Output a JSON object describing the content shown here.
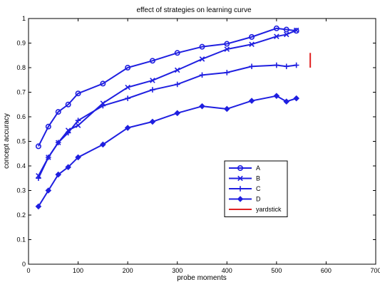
{
  "chart_data": {
    "type": "line",
    "title": "effect of strategies on learning curve",
    "xlabel": "probe moments",
    "ylabel": "concept accuracy",
    "xlim": [
      0,
      700
    ],
    "ylim": [
      0,
      1
    ],
    "xticks": [
      0,
      100,
      200,
      300,
      400,
      500,
      600,
      700
    ],
    "yticks": [
      0,
      0.1,
      0.2,
      0.3,
      0.4,
      0.5,
      0.6,
      0.7,
      0.8,
      0.9,
      1
    ],
    "grid": false,
    "legend_position": "center",
    "series": [
      {
        "name": "A",
        "marker": "circle",
        "color": "#1f1fe0",
        "x": [
          20,
          40,
          60,
          80,
          100,
          150,
          200,
          250,
          300,
          350,
          400,
          450,
          500,
          520,
          540
        ],
        "y": [
          0.48,
          0.56,
          0.62,
          0.65,
          0.695,
          0.735,
          0.8,
          0.828,
          0.86,
          0.885,
          0.897,
          0.925,
          0.96,
          0.955,
          0.95
        ]
      },
      {
        "name": "B",
        "marker": "x",
        "color": "#1f1fe0",
        "x": [
          20,
          40,
          60,
          80,
          100,
          150,
          200,
          250,
          300,
          350,
          400,
          450,
          500,
          520,
          540
        ],
        "y": [
          0.36,
          0.435,
          0.495,
          0.545,
          0.565,
          0.655,
          0.72,
          0.748,
          0.79,
          0.835,
          0.875,
          0.895,
          0.927,
          0.935,
          0.952
        ]
      },
      {
        "name": "C",
        "marker": "plus",
        "color": "#1f1fe0",
        "x": [
          20,
          40,
          60,
          80,
          100,
          150,
          200,
          250,
          300,
          350,
          400,
          450,
          500,
          520,
          540
        ],
        "y": [
          0.35,
          0.435,
          0.495,
          0.535,
          0.585,
          0.645,
          0.675,
          0.71,
          0.732,
          0.77,
          0.78,
          0.805,
          0.81,
          0.805,
          0.81
        ]
      },
      {
        "name": "D",
        "marker": "diamond",
        "color": "#1f1fe0",
        "x": [
          20,
          40,
          60,
          80,
          100,
          150,
          200,
          250,
          300,
          350,
          400,
          450,
          500,
          520,
          540
        ],
        "y": [
          0.235,
          0.3,
          0.365,
          0.395,
          0.435,
          0.487,
          0.555,
          0.58,
          0.615,
          0.643,
          0.632,
          0.665,
          0.685,
          0.662,
          0.675
        ]
      }
    ],
    "yardstick": {
      "name": "yardstick",
      "color": "#e02020",
      "x": 568,
      "y": [
        0.8,
        0.86
      ]
    }
  }
}
